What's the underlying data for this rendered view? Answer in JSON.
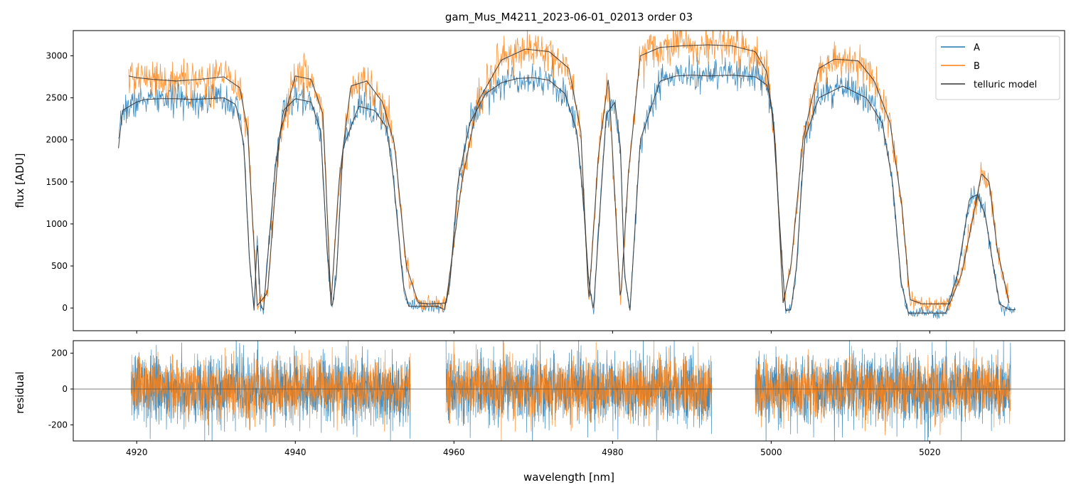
{
  "chart_data": [
    {
      "id": "flux-panel",
      "type": "line",
      "title": "gam_Mus_M4211_2023-06-01_02013  order 03",
      "xlabel": "",
      "ylabel": "flux [ADU]",
      "xlim": [
        4912,
        5037
      ],
      "ylim": [
        -270,
        3300
      ],
      "xticks": [
        4920,
        4940,
        4960,
        4980,
        5000,
        5020
      ],
      "yticks": [
        0,
        500,
        1000,
        1500,
        2000,
        2500,
        3000
      ],
      "grid": false,
      "legend_position": "top-right",
      "series": [
        {
          "name": "A",
          "color": "#1f77b4"
        },
        {
          "name": "B",
          "color": "#ff7f0e"
        },
        {
          "name": "telluric model",
          "color": "#333333"
        }
      ],
      "model_A": {
        "x": [
          4917.7,
          4918.2,
          4920,
          4921,
          4923,
          4925,
          4927,
          4929,
          4931,
          4932.5,
          4933.5,
          4934.2,
          4934.8,
          4935.2,
          4935.6,
          4936,
          4936.6,
          4937.5,
          4938.5,
          4940,
          4942,
          4943.2,
          4944,
          4944.6,
          4945.2,
          4946,
          4948,
          4950,
          4951.5,
          4952.3,
          4953,
          4953.6,
          4954.3,
          4955,
          4956,
          4957,
          4958,
          4958.8,
          4959.5,
          4960.5,
          4962,
          4964,
          4966,
          4968,
          4970,
          4972,
          4974,
          4975.5,
          4976.3,
          4977,
          4977.6,
          4978.3,
          4979.2,
          4980.3,
          4981,
          4981.5,
          4982.2,
          4983.5,
          4986,
          4988,
          4990,
          4992,
          4995,
          4998,
          4999.5,
          5000.2,
          5001,
          5001.8,
          5002.5,
          5003.2,
          5004.2,
          5006,
          5009,
          5012,
          5014,
          5015.3,
          5016.4,
          5017.3,
          5018,
          5020,
          5022,
          5023.5,
          5025,
          5026,
          5027,
          5028,
          5028.8,
          5030,
          5030.8
        ],
        "y": [
          1900,
          2350,
          2450,
          2480,
          2490,
          2490,
          2480,
          2490,
          2500,
          2420,
          1950,
          600,
          -30,
          850,
          20,
          -20,
          700,
          1700,
          2350,
          2490,
          2450,
          2100,
          700,
          -30,
          400,
          1900,
          2400,
          2350,
          2150,
          1600,
          900,
          280,
          20,
          20,
          20,
          20,
          20,
          -20,
          300,
          1500,
          2200,
          2550,
          2680,
          2730,
          2740,
          2710,
          2550,
          2100,
          1300,
          300,
          -30,
          1000,
          2300,
          2450,
          1900,
          400,
          -30,
          2000,
          2700,
          2760,
          2770,
          2760,
          2770,
          2750,
          2650,
          2300,
          1100,
          -30,
          -20,
          500,
          2000,
          2500,
          2640,
          2500,
          2200,
          1500,
          300,
          -60,
          -60,
          -60,
          -60,
          400,
          1300,
          1350,
          1100,
          500,
          50,
          -20,
          -20
        ]
      },
      "model_B": {
        "x": [
          4919,
          4920,
          4922,
          4925,
          4928,
          4931,
          4933,
          4934,
          4935.2,
          4936.5,
          4938,
          4940,
          4942,
          4943.5,
          4944.5,
          4945.5,
          4947,
          4949,
          4951,
          4952.5,
          4954,
          4955.5,
          4957,
          4959,
          4961,
          4963,
          4966,
          4969,
          4972,
          4974.5,
          4976,
          4977,
          4978.2,
          4979.5,
          4981,
          4982,
          4983.5,
          4986,
          4989,
          4992,
          4995,
          4998,
          4999.5,
          5000.5,
          5001.5,
          5002.5,
          5004,
          5006,
          5008,
          5011,
          5013,
          5015,
          5016.5,
          5017.5,
          5019,
          5021,
          5022.5,
          5024,
          5025.5,
          5026.5,
          5027.5,
          5028.5,
          5030
        ],
        "y": [
          2760,
          2740,
          2720,
          2700,
          2720,
          2750,
          2620,
          2100,
          30,
          180,
          2050,
          2760,
          2720,
          2300,
          40,
          1500,
          2640,
          2700,
          2450,
          1950,
          500,
          60,
          50,
          60,
          1500,
          2450,
          2950,
          3080,
          3050,
          2850,
          2100,
          60,
          1800,
          2750,
          60,
          1600,
          3000,
          3100,
          3120,
          3130,
          3120,
          3050,
          2800,
          2000,
          60,
          500,
          2000,
          2850,
          2960,
          2940,
          2700,
          2200,
          1200,
          100,
          50,
          50,
          50,
          400,
          1100,
          1600,
          1500,
          700,
          60
        ]
      },
      "observed_A": {
        "noise": 95,
        "seed": 7,
        "step": 0.07
      },
      "observed_B": {
        "noise": 120,
        "seed": 21,
        "step": 0.07
      }
    },
    {
      "id": "residual-panel",
      "type": "line",
      "title": "",
      "xlabel": "wavelength [nm]",
      "ylabel": "residual",
      "xlim": [
        4912,
        5037
      ],
      "ylim": [
        -290,
        270
      ],
      "xticks": [
        4920,
        4940,
        4960,
        4980,
        5000,
        5020
      ],
      "yticks": [
        -200,
        0,
        200
      ],
      "zero_line": 0,
      "segments": [
        [
          4919.3,
          4954.5
        ],
        [
          4959.0,
          4992.5
        ],
        [
          4998.0,
          5030.2
        ]
      ],
      "residual_A": {
        "noise": 95,
        "seed": 33,
        "step": 0.025,
        "color": "#1f77b4"
      },
      "residual_B": {
        "noise": 80,
        "seed": 55,
        "step": 0.025,
        "color": "#ff7f0e"
      }
    }
  ]
}
